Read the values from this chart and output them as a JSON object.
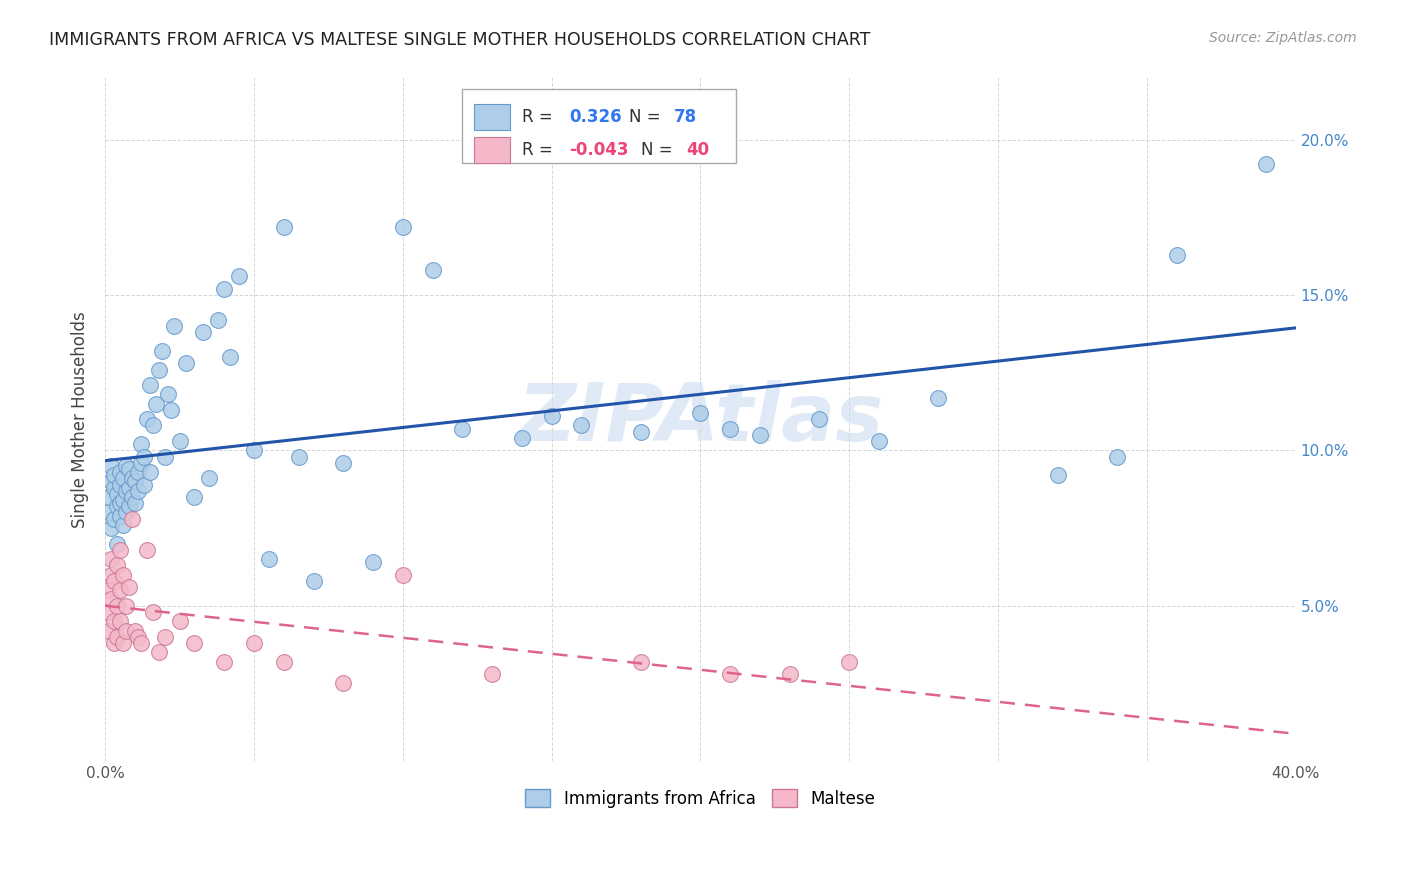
{
  "title": "IMMIGRANTS FROM AFRICA VS MALTESE SINGLE MOTHER HOUSEHOLDS CORRELATION CHART",
  "source": "Source: ZipAtlas.com",
  "ylabel": "Single Mother Households",
  "xlim": [
    0.0,
    0.4
  ],
  "ylim": [
    0.0,
    0.22
  ],
  "yticks": [
    0.0,
    0.05,
    0.1,
    0.15,
    0.2
  ],
  "ytick_labels_right": [
    "",
    "5.0%",
    "10.0%",
    "15.0%",
    "20.0%"
  ],
  "xticks": [
    0.0,
    0.05,
    0.1,
    0.15,
    0.2,
    0.25,
    0.3,
    0.35,
    0.4
  ],
  "xtick_labels": [
    "0.0%",
    "",
    "",
    "",
    "",
    "",
    "",
    "",
    "40.0%"
  ],
  "watermark": "ZIPAtlas",
  "blue_color": "#aecde8",
  "blue_edge": "#6699cc",
  "pink_color": "#f4b8c8",
  "pink_edge": "#cc7799",
  "trend_blue": "#2255aa",
  "trend_pink": "#dd6688",
  "background": "#ffffff",
  "grid_color": "#cccccc",
  "africa_x": [
    0.001,
    0.001,
    0.002,
    0.002,
    0.002,
    0.003,
    0.003,
    0.003,
    0.004,
    0.004,
    0.004,
    0.005,
    0.005,
    0.005,
    0.005,
    0.006,
    0.006,
    0.006,
    0.007,
    0.007,
    0.007,
    0.008,
    0.008,
    0.008,
    0.009,
    0.009,
    0.01,
    0.01,
    0.011,
    0.011,
    0.012,
    0.012,
    0.013,
    0.013,
    0.014,
    0.015,
    0.015,
    0.016,
    0.017,
    0.018,
    0.019,
    0.02,
    0.021,
    0.022,
    0.023,
    0.025,
    0.027,
    0.03,
    0.033,
    0.035,
    0.038,
    0.04,
    0.042,
    0.045,
    0.05,
    0.055,
    0.06,
    0.065,
    0.07,
    0.08,
    0.09,
    0.1,
    0.11,
    0.12,
    0.14,
    0.15,
    0.16,
    0.18,
    0.2,
    0.21,
    0.22,
    0.24,
    0.26,
    0.28,
    0.32,
    0.34,
    0.36,
    0.39
  ],
  "africa_y": [
    0.08,
    0.085,
    0.075,
    0.09,
    0.095,
    0.078,
    0.088,
    0.092,
    0.082,
    0.086,
    0.07,
    0.079,
    0.083,
    0.089,
    0.093,
    0.076,
    0.084,
    0.091,
    0.08,
    0.087,
    0.095,
    0.082,
    0.088,
    0.094,
    0.085,
    0.091,
    0.083,
    0.09,
    0.087,
    0.093,
    0.096,
    0.102,
    0.089,
    0.098,
    0.11,
    0.093,
    0.121,
    0.108,
    0.115,
    0.126,
    0.132,
    0.098,
    0.118,
    0.113,
    0.14,
    0.103,
    0.128,
    0.085,
    0.138,
    0.091,
    0.142,
    0.152,
    0.13,
    0.156,
    0.1,
    0.065,
    0.172,
    0.098,
    0.058,
    0.096,
    0.064,
    0.172,
    0.158,
    0.107,
    0.104,
    0.111,
    0.108,
    0.106,
    0.112,
    0.107,
    0.105,
    0.11,
    0.103,
    0.117,
    0.092,
    0.098,
    0.163,
    0.192
  ],
  "maltese_x": [
    0.001,
    0.001,
    0.001,
    0.002,
    0.002,
    0.002,
    0.003,
    0.003,
    0.003,
    0.004,
    0.004,
    0.004,
    0.005,
    0.005,
    0.005,
    0.006,
    0.006,
    0.007,
    0.007,
    0.008,
    0.009,
    0.01,
    0.011,
    0.012,
    0.014,
    0.016,
    0.018,
    0.02,
    0.025,
    0.03,
    0.04,
    0.05,
    0.06,
    0.08,
    0.1,
    0.13,
    0.18,
    0.21,
    0.23,
    0.25
  ],
  "maltese_y": [
    0.048,
    0.055,
    0.042,
    0.06,
    0.052,
    0.065,
    0.045,
    0.058,
    0.038,
    0.05,
    0.063,
    0.04,
    0.068,
    0.045,
    0.055,
    0.038,
    0.06,
    0.042,
    0.05,
    0.056,
    0.078,
    0.042,
    0.04,
    0.038,
    0.068,
    0.048,
    0.035,
    0.04,
    0.045,
    0.038,
    0.032,
    0.038,
    0.032,
    0.025,
    0.06,
    0.028,
    0.032,
    0.028,
    0.028,
    0.032
  ]
}
